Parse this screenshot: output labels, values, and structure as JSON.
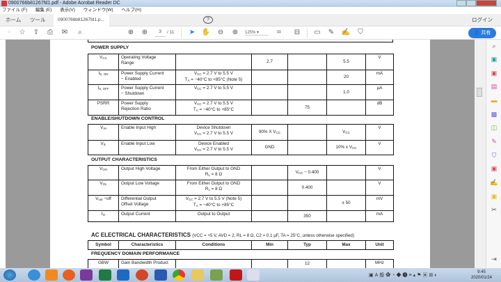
{
  "window": {
    "title": "0900766b81267fd1.pdf - Adobe Acrobat Reader DC"
  },
  "menu": [
    "ファイル (F)",
    "編集 (E)",
    "表示(V)",
    "ウィンドウ(W)",
    "ヘルプ(H)"
  ],
  "tabs": {
    "home": "ホーム",
    "tools": "ツール",
    "document": "0900766b81267fd1.p...",
    "close": "×",
    "help": "?",
    "login": "ログイン"
  },
  "toolbar": {
    "page_current": "3",
    "page_total": "/ 11",
    "zoom": "125%",
    "share": "共有"
  },
  "sections": [
    {
      "title": "POWER SUPPLY",
      "rows": [
        [
          [
            "V{CC}"
          ],
          [
            "Operating Voltage",
            "Range"
          ],
          [],
          [
            "2.7"
          ],
          [],
          [
            "5.5"
          ],
          [
            "V"
          ]
        ],
        [
          [
            "I{S, ON}"
          ],
          [
            "Power Supply Current",
            "− Enabled"
          ],
          [
            "V{CC} = 2.7 V to 5.5 V",
            "T{A} = −40°C to +85°C (Note 5)"
          ],
          [],
          [],
          [
            "20"
          ],
          [
            "mA"
          ]
        ],
        [
          [
            "I{S, OFF}"
          ],
          [
            "Power Supply Current",
            "− Shutdown"
          ],
          [
            "V{CC} = 2.7 V to 5.5 V"
          ],
          [],
          [],
          [
            "1.0"
          ],
          [
            "µA"
          ]
        ],
        [
          [
            "PSRR"
          ],
          [
            "Power Supply",
            "Rejection Ratio"
          ],
          [
            "V{CC} = 2.7 V to 5.5 V",
            "T{A} = −40°C to +85°C"
          ],
          [],
          [
            "75"
          ],
          [],
          [
            "dB"
          ]
        ]
      ]
    },
    {
      "title": "ENABLE/SHUTDOWN CONTROL",
      "rows": [
        [
          [
            "V{IH}"
          ],
          [
            "Enable Input High"
          ],
          [
            "Device Shutdown",
            "V{CC} = 2.7 V to 5.5 V"
          ],
          [
            "90% X V{CC}"
          ],
          [],
          [
            "V{CC}"
          ],
          [
            "V"
          ]
        ],
        [
          [
            "V{IL}"
          ],
          [
            "Enable Input Low"
          ],
          [
            "Device Enabled",
            "V{CC} = 2.7 V to 5.5 V"
          ],
          [
            "GND"
          ],
          [],
          [
            "10% x V{CC}"
          ],
          [
            "V"
          ]
        ]
      ]
    },
    {
      "title": "OUTPUT CHARACTERISTICS",
      "rows": [
        [
          [
            "V{OH}"
          ],
          [
            "Output High Voltage"
          ],
          [
            "From Either Output to GND",
            "R{L} = 8 Ω"
          ],
          [],
          [
            "V{CC} − 0.400"
          ],
          [],
          [
            "V"
          ]
        ],
        [
          [
            "V{OL}"
          ],
          [
            "Output Low Voltage"
          ],
          [
            "From Either Output to GND",
            "R{L} = 8 Ω"
          ],
          [],
          [
            "0.400"
          ],
          [],
          [
            "V"
          ]
        ],
        [
          [
            "V{out} −off"
          ],
          [
            "Differential Output",
            "Offset Voltage"
          ],
          [
            "V{CC} = 2.7 V to 5.5 V (Note 5)",
            "T{A} = −40°C to +85°C"
          ],
          [],
          [],
          [
            "± 50"
          ],
          [
            "mV"
          ]
        ],
        [
          [
            "I{O}"
          ],
          [
            "Output Current"
          ],
          [
            "Output to Output"
          ],
          [],
          [
            "350"
          ],
          [],
          [
            "mA"
          ]
        ]
      ]
    }
  ],
  "ac": {
    "title": "AC ELECTRICAL CHARACTERISTICS",
    "conditions": "(VCC = +5 V, AVD = 2, RL = 8 Ω, C2 = 0.1 µF, TA = 25°C, unless otherwise specified)",
    "headers": [
      "Symbol",
      "Characteristics",
      "Conditions",
      "Min",
      "Typ",
      "Max",
      "Unit"
    ],
    "section": "FREQUENCY DOMAIN PERFORMANCE",
    "rows": [
      [
        [
          "GBW"
        ],
        [
          "Gain Bandwidth Product"
        ],
        [],
        [],
        [
          "12"
        ],
        [],
        [
          "MHz"
        ]
      ]
    ]
  },
  "taskbar": {
    "time": "9:45",
    "date": "2020/01/24"
  },
  "colors": {
    "accent": "#2b7be0",
    "panel_gray": "#9a9a9a"
  }
}
